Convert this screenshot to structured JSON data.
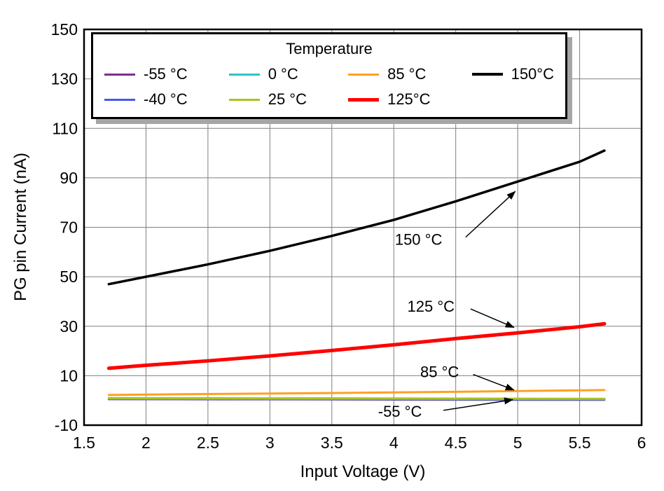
{
  "chart_data": {
    "type": "line",
    "title": "",
    "xlabel": "Input Voltage (V)",
    "ylabel": "PG pin Current (nA)",
    "xlim": [
      1.5,
      6
    ],
    "ylim": [
      -10,
      150
    ],
    "xticks": [
      1.5,
      2,
      2.5,
      3,
      3.5,
      4,
      4.5,
      5,
      5.5,
      6
    ],
    "yticks": [
      -10,
      10,
      30,
      50,
      70,
      90,
      110,
      130,
      150
    ],
    "grid": true,
    "grid_color": "#7f7f7f",
    "legend": {
      "title": "Temperature",
      "position": "top",
      "entries": [
        {
          "label": "-55 °C",
          "color": "#7D2E8D",
          "width": 3
        },
        {
          "label": "-40 °C",
          "color": "#4759E4",
          "width": 3
        },
        {
          "label": "0 °C",
          "color": "#2EC4C4",
          "width": 3
        },
        {
          "label": "25 °C",
          "color": "#A8C520",
          "width": 3
        },
        {
          "label": "85 °C",
          "color": "#FFA020",
          "width": 3
        },
        {
          "label": "125°C",
          "color": "#FF0000",
          "width": 5
        },
        {
          "label": "150°C",
          "color": "#000000",
          "width": 4
        }
      ]
    },
    "series": [
      {
        "name": "-55 °C",
        "color": "#7D2E8D",
        "width": 3,
        "x": [
          1.7,
          2.5,
          3.5,
          4.5,
          5.7
        ],
        "y": [
          0.5,
          0.45,
          0.4,
          0.3,
          0.25
        ]
      },
      {
        "name": "-40 °C",
        "color": "#4759E4",
        "width": 3,
        "x": [
          1.7,
          2.5,
          3.5,
          4.5,
          5.7
        ],
        "y": [
          0.6,
          0.55,
          0.5,
          0.45,
          0.4
        ]
      },
      {
        "name": "0 °C",
        "color": "#2EC4C4",
        "width": 3,
        "x": [
          1.7,
          2.5,
          3.5,
          4.5,
          5.7
        ],
        "y": [
          0.75,
          0.7,
          0.65,
          0.6,
          0.55
        ]
      },
      {
        "name": "25 °C",
        "color": "#A8C520",
        "width": 3,
        "x": [
          1.7,
          2.5,
          3.5,
          4.5,
          5.7
        ],
        "y": [
          0.95,
          0.9,
          0.85,
          0.75,
          0.65
        ]
      },
      {
        "name": "85 °C",
        "color": "#FFA020",
        "width": 3,
        "x": [
          1.7,
          2.5,
          3.5,
          4.5,
          5.7
        ],
        "y": [
          2.2,
          2.6,
          3.0,
          3.5,
          4.2
        ]
      },
      {
        "name": "125°C",
        "color": "#FF0000",
        "width": 5,
        "x": [
          1.7,
          2,
          2.5,
          3,
          3.5,
          4,
          4.5,
          5,
          5.5,
          5.7
        ],
        "y": [
          13,
          14.2,
          16,
          18,
          20.2,
          22.5,
          25,
          27.3,
          29.8,
          31
        ]
      },
      {
        "name": "150°C",
        "color": "#000000",
        "width": 3.5,
        "x": [
          1.7,
          2,
          2.5,
          3,
          3.5,
          4,
          4.5,
          5,
          5.5,
          5.7
        ],
        "y": [
          47,
          50,
          55,
          60.5,
          66.5,
          73,
          80.5,
          88.5,
          96.5,
          101
        ]
      }
    ],
    "annotations": [
      {
        "text": "150 °C",
        "text_x": 4.2,
        "text_y": 65,
        "arrow_x1": 4.58,
        "arrow_y1": 66,
        "arrow_x2": 4.98,
        "arrow_y2": 84.5
      },
      {
        "text": "125 °C",
        "text_x": 4.3,
        "text_y": 38,
        "arrow_x1": 4.62,
        "arrow_y1": 37,
        "arrow_x2": 4.97,
        "arrow_y2": 29.5
      },
      {
        "text": "85 °C",
        "text_x": 4.37,
        "text_y": 11.5,
        "arrow_x1": 4.64,
        "arrow_y1": 10.5,
        "arrow_x2": 4.97,
        "arrow_y2": 4.2
      },
      {
        "text": "-55 °C",
        "text_x": 4.05,
        "text_y": -4.5,
        "arrow_x1": 4.4,
        "arrow_y1": -4,
        "arrow_x2": 4.96,
        "arrow_y2": 0.3
      }
    ]
  }
}
